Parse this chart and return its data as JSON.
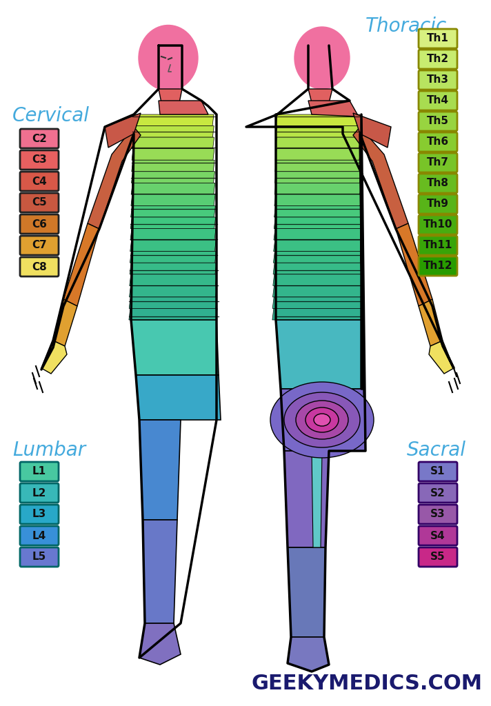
{
  "background_color": "#ffffff",
  "cervical_title": "Cervical",
  "cervical_labels": [
    "C2",
    "C3",
    "C4",
    "C5",
    "C6",
    "C7",
    "C8"
  ],
  "cervical_colors": [
    "#F07090",
    "#E86060",
    "#D85848",
    "#C85840",
    "#D07828",
    "#E0A030",
    "#F0E060"
  ],
  "thoracic_title": "Thoracic",
  "thoracic_labels": [
    "Th1",
    "Th2",
    "Th3",
    "Th4",
    "Th5",
    "Th6",
    "Th7",
    "Th8",
    "Th9",
    "Th10",
    "Th11",
    "Th12"
  ],
  "thoracic_colors": [
    "#D8F080",
    "#C8EC70",
    "#B8E460",
    "#A8DC50",
    "#98D440",
    "#88CC30",
    "#78C428",
    "#68BC20",
    "#58B418",
    "#48AC10",
    "#38A408",
    "#289C00"
  ],
  "lumbar_title": "Lumbar",
  "lumbar_labels": [
    "L1",
    "L2",
    "L3",
    "L4",
    "L5"
  ],
  "lumbar_colors": [
    "#48C8A0",
    "#38B8B8",
    "#28A8C8",
    "#3890D8",
    "#6878D0"
  ],
  "sacral_title": "Sacral",
  "sacral_labels": [
    "S1",
    "S2",
    "S3",
    "S4",
    "S5"
  ],
  "sacral_colors": [
    "#7878C8",
    "#8868B8",
    "#9858A8",
    "#B03898",
    "#C82888"
  ],
  "watermark": "GEEKYMEDICS.COM",
  "title_color": "#44AADD",
  "label_fontsize": 11,
  "title_fontsize": 20,
  "watermark_fontsize": 22,
  "box_border_color": "#222222",
  "thoracic_border": "#888800",
  "lumbar_border": "#006666",
  "sacral_border": "#330066"
}
